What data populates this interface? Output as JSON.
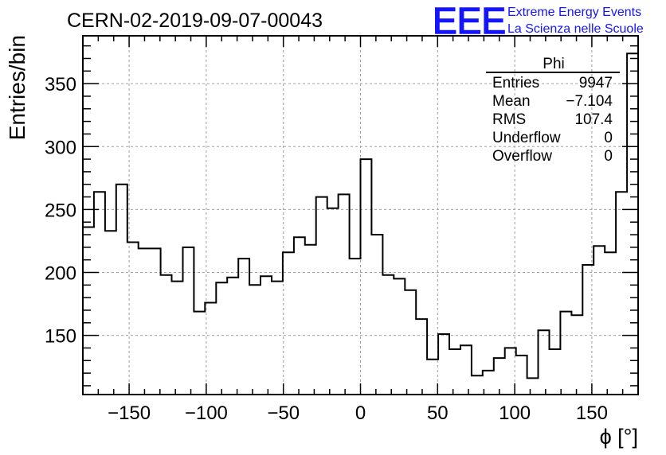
{
  "chart_data": {
    "type": "histogram",
    "title": "CERN-02-2019-09-07-00043",
    "xlabel": "ϕ [°]",
    "ylabel": "Entries/bin",
    "xlim": [
      -180,
      180
    ],
    "ylim": [
      103,
      388
    ],
    "grid": true,
    "bin_edges_start": -180,
    "bin_width": 7.2,
    "values": [
      236,
      264,
      233,
      270,
      224,
      219,
      219,
      198,
      193,
      220,
      169,
      176,
      192,
      196,
      211,
      190,
      197,
      193,
      216,
      228,
      222,
      260,
      251,
      262,
      211,
      290,
      230,
      198,
      195,
      186,
      163,
      131,
      151,
      139,
      142,
      118,
      122,
      132,
      140,
      134,
      116,
      154,
      139,
      169,
      166,
      206,
      221,
      216,
      264,
      374
    ],
    "x_ticks": [
      {
        "value": -150,
        "label": "−150"
      },
      {
        "value": -100,
        "label": "−100"
      },
      {
        "value": -50,
        "label": "−50"
      },
      {
        "value": 0,
        "label": "0"
      },
      {
        "value": 50,
        "label": "50"
      },
      {
        "value": 100,
        "label": "100"
      },
      {
        "value": 150,
        "label": "150"
      }
    ],
    "y_ticks": [
      {
        "value": 150,
        "label": "150"
      },
      {
        "value": 200,
        "label": "200"
      },
      {
        "value": 250,
        "label": "250"
      },
      {
        "value": 300,
        "label": "300"
      },
      {
        "value": 350,
        "label": "350"
      }
    ],
    "stats_box": {
      "title": "Phi",
      "rows": [
        {
          "label": "Entries",
          "value": "9947"
        },
        {
          "label": "Mean",
          "value": "−7.104"
        },
        {
          "label": "RMS",
          "value": "107.4"
        },
        {
          "label": "Underflow",
          "value": "0"
        },
        {
          "label": "Overflow",
          "value": "0"
        }
      ]
    }
  },
  "logo": {
    "mark": "EEE",
    "line1": "Extreme Energy Events",
    "line2": "La Scienza nelle Scuole",
    "color": "#1414ff"
  },
  "colors": {
    "line": "#000000",
    "grid": "#a0a0a0"
  }
}
